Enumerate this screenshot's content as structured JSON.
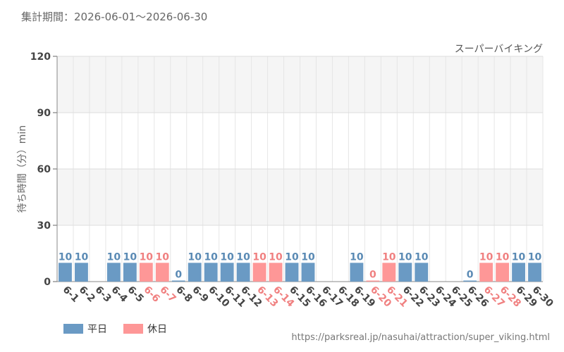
{
  "header": {
    "period": "集計期間：2026-06-01～2026-06-30"
  },
  "chart_data": {
    "type": "bar",
    "series_name": "スーパーバイキング",
    "ylabel": "待ち時間（分）min",
    "ylim": [
      0,
      120
    ],
    "yticks": [
      0,
      30,
      60,
      90,
      120
    ],
    "categories": [
      "6-1",
      "6-2",
      "6-3",
      "6-4",
      "6-5",
      "6-6",
      "6-7",
      "6-8",
      "6-9",
      "6-10",
      "6-11",
      "6-12",
      "6-13",
      "6-14",
      "6-15",
      "6-16",
      "6-17",
      "6-18",
      "6-19",
      "6-20",
      "6-21",
      "6-22",
      "6-23",
      "6-24",
      "6-25",
      "6-26",
      "6-27",
      "6-28",
      "6-29",
      "6-30"
    ],
    "values": [
      10,
      10,
      null,
      10,
      10,
      10,
      10,
      0,
      10,
      10,
      10,
      10,
      10,
      10,
      10,
      10,
      null,
      null,
      10,
      0,
      10,
      10,
      10,
      null,
      null,
      0,
      10,
      10,
      10,
      10
    ],
    "holiday": [
      false,
      false,
      false,
      false,
      false,
      true,
      true,
      false,
      false,
      false,
      false,
      false,
      true,
      true,
      false,
      false,
      false,
      false,
      false,
      true,
      true,
      false,
      false,
      false,
      false,
      false,
      true,
      true,
      false,
      false
    ],
    "colors": {
      "weekday": "#6a9ac4",
      "holiday": "#fe9797",
      "weekday_text": "#5a8ab4",
      "holiday_text": "#f08080"
    },
    "legend": [
      {
        "label": "平日",
        "color": "#6a9ac4"
      },
      {
        "label": "休日",
        "color": "#fe9797"
      }
    ]
  },
  "footer": {
    "source": "https://parksreal.jp/nasuhai/attraction/super_viking.html"
  }
}
